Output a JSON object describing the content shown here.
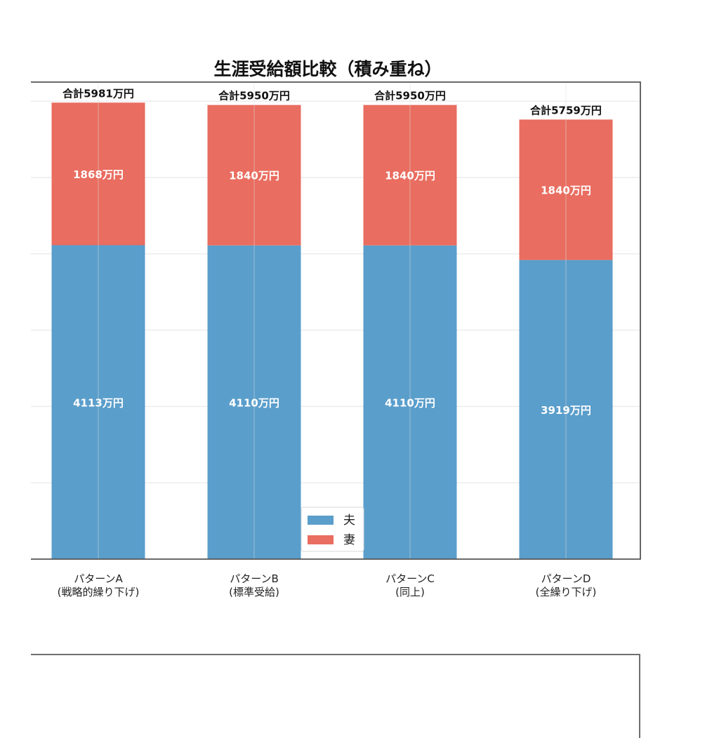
{
  "chart_data": {
    "type": "bar",
    "stacked": true,
    "title": "生涯受給額比較（積み重ね）",
    "categories": [
      [
        "パターンA",
        "(戦略的繰り下げ)"
      ],
      [
        "パターンB",
        "(標準受給)"
      ],
      [
        "パターンC",
        "(同上)"
      ],
      [
        "パターンD",
        "(全繰り下げ)"
      ]
    ],
    "series": [
      {
        "name": "夫",
        "color": "#5a9ecb",
        "values": [
          4113,
          4110,
          4110,
          3919
        ]
      },
      {
        "name": "妻",
        "color": "#e96d60",
        "values": [
          1868,
          1840,
          1840,
          1840
        ]
      }
    ],
    "segment_labels": [
      [
        "4113万円",
        "4110万円",
        "4110万円",
        "3919万円"
      ],
      [
        "1868万円",
        "1840万円",
        "1840万円",
        "1840万円"
      ]
    ],
    "total_labels": [
      "合計5981万円",
      "合計5950万円",
      "合計5950万円",
      "合計5759万円"
    ],
    "ylim": [
      0,
      6250
    ],
    "grid": true,
    "legend_position": "lower-center",
    "xlabel": "",
    "ylabel": ""
  }
}
